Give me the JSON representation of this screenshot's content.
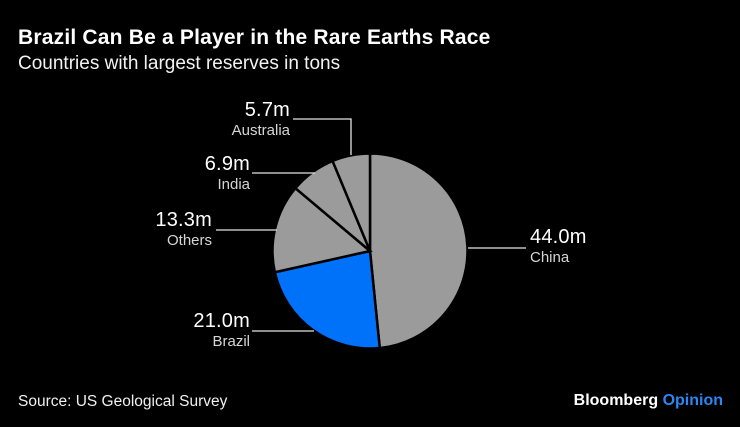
{
  "header": {
    "title": "Brazil Can Be a Player in the Rare Earths Race",
    "subtitle": "Countries with largest reserves in tons"
  },
  "footer": {
    "source": "Source: US Geological Survey",
    "brand": "Bloomberg",
    "brand_suffix": "Opinion"
  },
  "colors": {
    "background": "#000000",
    "slice_default": "#9b9b9b",
    "slice_highlight": "#0072fa",
    "leader_line": "#e3e3e3",
    "value_text": "#ffffff",
    "country_text": "#d6d6d6",
    "brand_suffix_blue": "#2b87f3"
  },
  "chart_data": {
    "type": "pie",
    "title": "Brazil Can Be a Player in the Rare Earths Race",
    "subtitle": "Countries with largest reserves in tons",
    "unit": "million tons",
    "start_angle_deg": 0,
    "direction": "clockwise",
    "slices": [
      {
        "label": "China",
        "value": 44.0,
        "value_label": "44.0m",
        "color": "#9b9b9b"
      },
      {
        "label": "Brazil",
        "value": 21.0,
        "value_label": "21.0m",
        "color": "#0072fa"
      },
      {
        "label": "Others",
        "value": 13.3,
        "value_label": "13.3m",
        "color": "#9b9b9b"
      },
      {
        "label": "India",
        "value": 6.9,
        "value_label": "6.9m",
        "color": "#9b9b9b"
      },
      {
        "label": "Australia",
        "value": 5.7,
        "value_label": "5.7m",
        "color": "#9b9b9b"
      }
    ]
  }
}
